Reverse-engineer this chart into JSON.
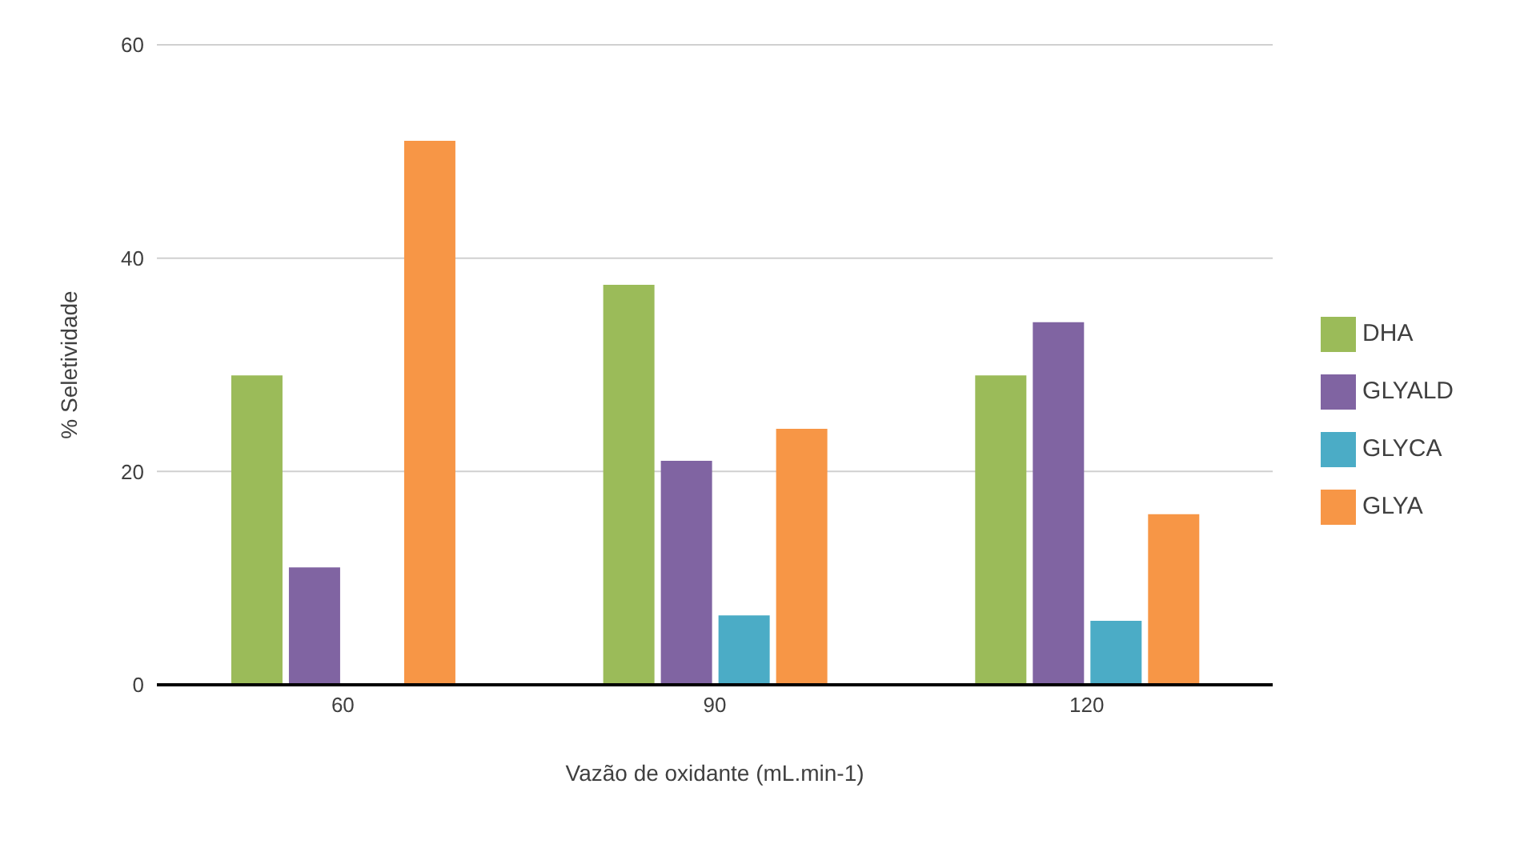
{
  "chart_data": {
    "type": "bar",
    "xlabel": "Vazão de oxidante (mL.min-1)",
    "ylabel": "% Seletividade",
    "categories": [
      "60",
      "90",
      "120"
    ],
    "series": [
      {
        "name": "DHA",
        "color": "#9bbb59",
        "values": [
          29,
          37.5,
          29
        ]
      },
      {
        "name": "GLYALD",
        "color": "#8064a2",
        "values": [
          11,
          21,
          34
        ]
      },
      {
        "name": "GLYCA",
        "color": "#4bacc6",
        "values": [
          0,
          6.5,
          6
        ]
      },
      {
        "name": "GLYA",
        "color": "#f79646",
        "values": [
          51,
          24,
          16
        ]
      }
    ],
    "ylim": [
      0,
      60
    ],
    "yticks": [
      0,
      20,
      40,
      60
    ],
    "grid": "y",
    "legend": "right"
  }
}
